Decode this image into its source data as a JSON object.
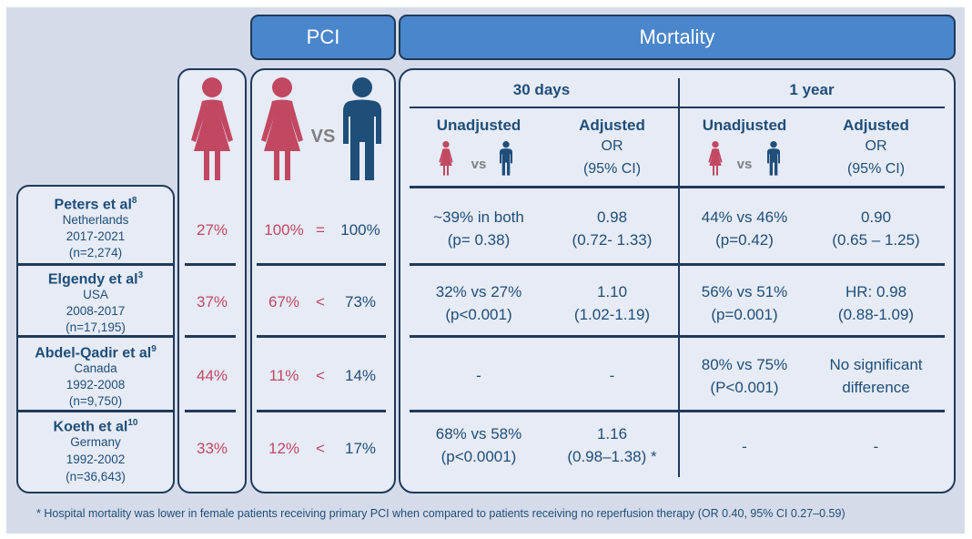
{
  "headers": {
    "pci": "PCI",
    "mortality": "Mortality"
  },
  "periods": {
    "d30": "30 days",
    "y1": "1 year"
  },
  "col_heads": {
    "unadjusted": "Unadjusted",
    "adjusted": "Adjusted",
    "or": "OR",
    "ci": "(95% CI)",
    "vs": "vs"
  },
  "vs_big": "VS",
  "studies": [
    {
      "name": "Peters et al",
      "ref": "8",
      "country": "Netherlands",
      "years": "2017-2021",
      "n": "(n=2,274)",
      "female_pct": "27%",
      "pci_f": "100%",
      "pci_sym": "=",
      "pci_m": "100%",
      "d30_unadj_1": "~39% in both",
      "d30_unadj_2": "(p= 0.38)",
      "d30_adj_1": "0.98",
      "d30_adj_2": "(0.72- 1.33)",
      "y1_unadj_1": "44% vs 46%",
      "y1_unadj_2": "(p=0.42)",
      "y1_adj_1": "0.90",
      "y1_adj_2": "(0.65 – 1.25)"
    },
    {
      "name": "Elgendy et al",
      "ref": "3",
      "country": "USA",
      "years": "2008-2017",
      "n": "(n=17,195)",
      "female_pct": "37%",
      "pci_f": "67%",
      "pci_sym": "<",
      "pci_m": "73%",
      "d30_unadj_1": "32% vs 27%",
      "d30_unadj_2": "(p<0.001)",
      "d30_adj_1": "1.10",
      "d30_adj_2": "(1.02-1.19)",
      "y1_unadj_1": "56% vs 51%",
      "y1_unadj_2": "(p=0.001)",
      "y1_adj_1": "HR: 0.98",
      "y1_adj_2": "(0.88-1.09)"
    },
    {
      "name": "Abdel-Qadir et al",
      "ref": "9",
      "country": "Canada",
      "years": "1992-2008",
      "n": "(n=9,750)",
      "female_pct": "44%",
      "pci_f": "11%",
      "pci_sym": "<",
      "pci_m": "14%",
      "d30_unadj_1": "-",
      "d30_unadj_2": "",
      "d30_adj_1": "-",
      "d30_adj_2": "",
      "y1_unadj_1": "80% vs 75%",
      "y1_unadj_2": "(P<0.001)",
      "y1_adj_1": "No significant",
      "y1_adj_2": "difference"
    },
    {
      "name": "Koeth et al",
      "ref": "10",
      "country": "Germany",
      "years": "1992-2002",
      "n": "(n=36,643)",
      "female_pct": "33%",
      "pci_f": "12%",
      "pci_sym": "<",
      "pci_m": "17%",
      "d30_unadj_1": "68% vs 58%",
      "d30_unadj_2": "(p<0.0001)",
      "d30_adj_1": "1.16",
      "d30_adj_2": "(0.98–1.38) *",
      "y1_unadj_1": "-",
      "y1_unadj_2": "",
      "y1_adj_1": "-",
      "y1_adj_2": ""
    }
  ],
  "footnote": "* Hospital mortality was lower in female patients receiving primary PCI when compared to patients receiving no reperfusion therapy (OR 0.40, 95% CI 0.27–0.59)",
  "colors": {
    "female": "#c24862",
    "male": "#1f4e79",
    "header": "#4a86cc",
    "background": "#d5dbe9",
    "panel": "#e6ebf5"
  }
}
